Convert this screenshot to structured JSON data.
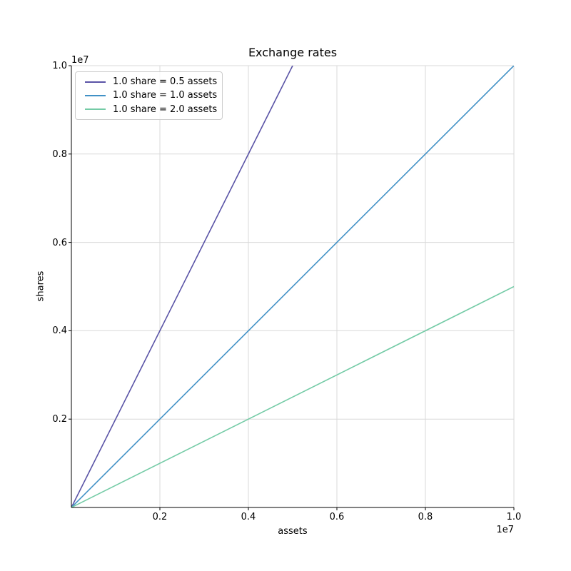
{
  "chart_data": {
    "type": "line",
    "title": "Exchange rates",
    "xlabel": "assets",
    "ylabel": "shares",
    "x_offset_label": "1e7",
    "y_offset_label": "1e7",
    "xlim": [
      0,
      10000000
    ],
    "ylim": [
      0,
      10000000
    ],
    "x_tick_values": [
      2000000,
      4000000,
      6000000,
      8000000,
      10000000
    ],
    "x_tick_labels": [
      "0.2",
      "0.4",
      "0.6",
      "0.8",
      "1.0"
    ],
    "y_tick_values": [
      2000000,
      4000000,
      6000000,
      8000000,
      10000000
    ],
    "y_tick_labels": [
      "0.2",
      "0.4",
      "0.6",
      "0.8",
      "1.0"
    ],
    "grid": true,
    "grid_color": "#d9d9d9",
    "spine_color": "#000000",
    "legend_position": "upper-left",
    "series": [
      {
        "name": "1.0 share = 0.5 assets",
        "color": "#5a53a6",
        "x": [
          0,
          10000000
        ],
        "y": [
          0,
          20000000
        ]
      },
      {
        "name": "1.0 share = 1.0 assets",
        "color": "#4191c6",
        "x": [
          0,
          10000000
        ],
        "y": [
          0,
          10000000
        ]
      },
      {
        "name": "1.0 share = 2.0 assets",
        "color": "#74cba6",
        "x": [
          0,
          10000000
        ],
        "y": [
          0,
          5000000
        ]
      }
    ]
  }
}
